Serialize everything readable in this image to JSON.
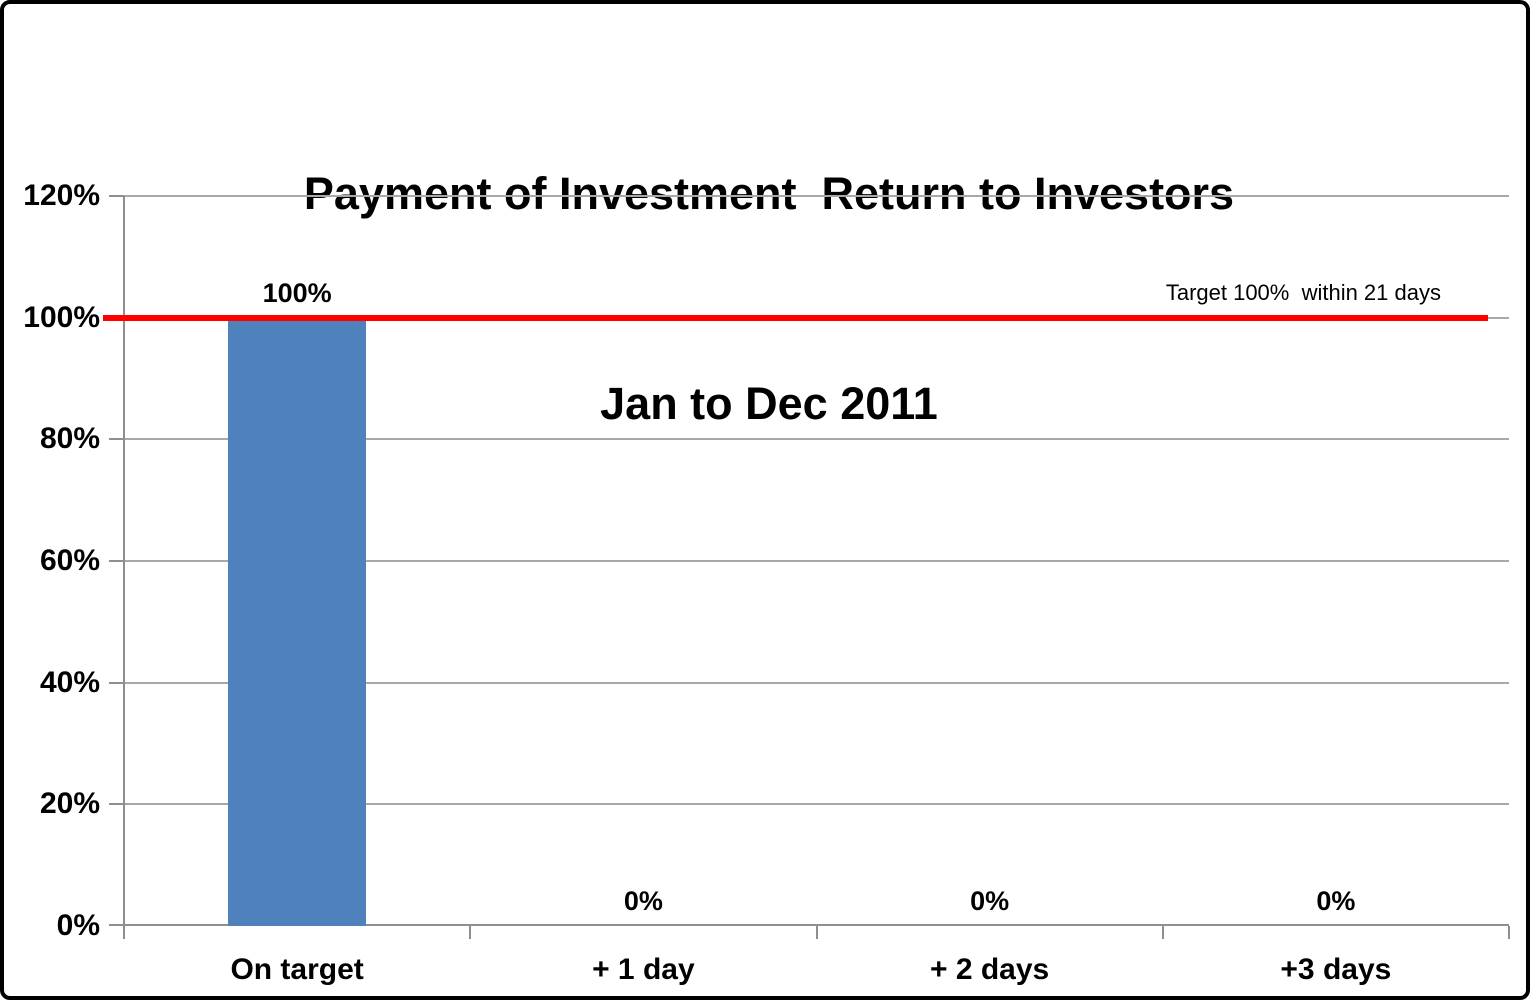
{
  "chart_data": {
    "type": "bar",
    "title": "Payment of Investment  Return to Investors",
    "subtitle": "Jan to Dec 2011",
    "categories": [
      "On target",
      "+ 1 day",
      "+ 2 days",
      "+3 days"
    ],
    "values": [
      100,
      0,
      0,
      0
    ],
    "value_labels": [
      "100%",
      "0%",
      "0%",
      "0%"
    ],
    "xlabel": "",
    "ylabel": "",
    "ylim": [
      0,
      120
    ],
    "y_tick_step": 20,
    "y_tick_labels": [
      "0%",
      "20%",
      "40%",
      "60%",
      "80%",
      "100%",
      "120%"
    ],
    "grid": true,
    "legend": "none",
    "bar_color": "#4F81BD",
    "gridline_color": "#A8A8A8",
    "axis_color": "#8F8F8F",
    "target_line": {
      "value": 100,
      "label": "Target 100%  within 21 days",
      "color": "#FF0000"
    }
  }
}
